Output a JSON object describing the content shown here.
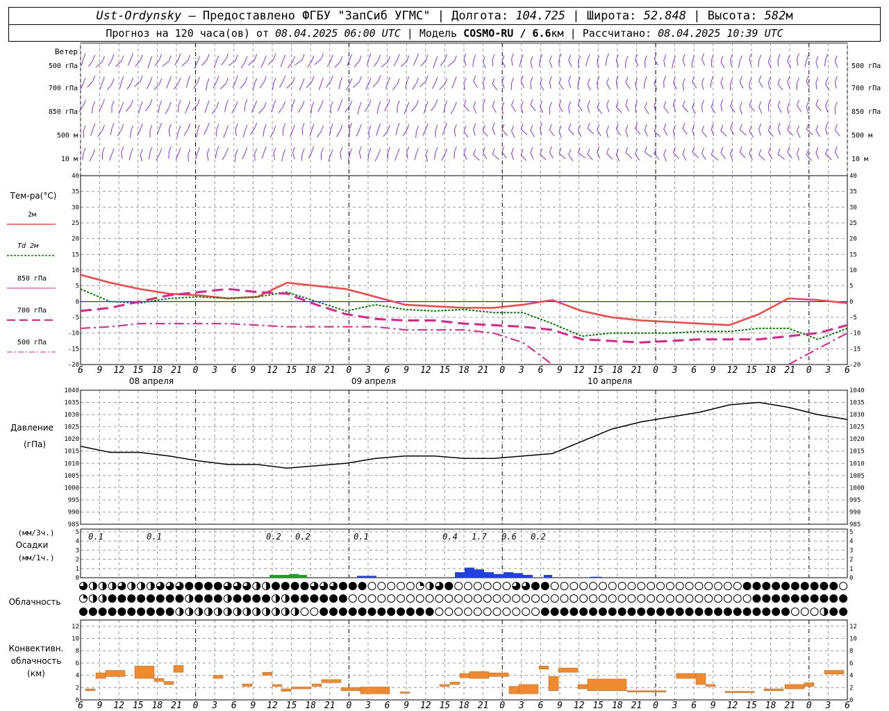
{
  "header": {
    "station": "Ust-Ordynsky",
    "provider": "— Предоставлено ФГБУ \"ЗапСиб УГМС\"",
    "lon_label": "Долгота:",
    "lon": "104.725",
    "lat_label": "Широта:",
    "lat": "52.848",
    "alt_label": "Высота:",
    "alt": "582",
    "alt_unit": "м",
    "forecast_label": "Прогноз на 120 часа(ов) от",
    "forecast_time": "08.04.2025 06:00 UTC",
    "model_label": "Модель",
    "model": "COSMO-RU / 6.6",
    "model_unit": "км",
    "calc_label": "Рассчитано:",
    "calc_time": "08.04.2025 10:39 UTC"
  },
  "labels": {
    "wind": "Ветер",
    "wind_levels": [
      "500 гПа",
      "700 гПа",
      "850 гПа",
      "500 м",
      "10  м"
    ],
    "temp_title": "Тем-ра(°С)",
    "temp_legend": [
      "2м",
      "Td 2м",
      "850 гПа",
      "700 гПа",
      "500 гПа"
    ],
    "pressure_title": "Давление",
    "pressure_unit": "(гПа)",
    "precip_unit3": "(мм/3ч.)",
    "precip_title": "Осадки",
    "precip_unit1": "(мм/1ч.)",
    "cloud_title": "Облачность",
    "conv_title": [
      "Конвективн.",
      "облачность",
      "(км)"
    ],
    "dates": [
      "08 апреля",
      "09 апреля",
      "10 апреля"
    ]
  },
  "colors": {
    "t2m": "#ff4040",
    "td2m": "#008000",
    "t850": "#e0208c",
    "t700": "#e0208c",
    "t500": "#e0208c",
    "zero_line": "#0000ff",
    "wind": "#8a2be2",
    "precip_green": "#20a020",
    "precip_blue": "#2040e0",
    "conv": "#f08a30"
  },
  "chart_data": [
    {
      "type": "line",
      "title": "Тем-ра(°С)",
      "x_hours": [
        6,
        9,
        12,
        15,
        18,
        21,
        0,
        3,
        6,
        9,
        12,
        15,
        18,
        21,
        0,
        3,
        6,
        9,
        12,
        15,
        18,
        21,
        0,
        3,
        6,
        9,
        12
      ],
      "ylim": [
        -20,
        40
      ],
      "yticks": [
        -20,
        -15,
        -10,
        -5,
        0,
        5,
        10,
        15,
        20,
        25,
        30,
        35,
        40
      ],
      "series": [
        {
          "name": "2м",
          "values": [
            8.5,
            6,
            4,
            2.5,
            2,
            1,
            1.5,
            6,
            5,
            4,
            1.5,
            -1,
            -1.5,
            -2,
            -2,
            -1,
            0.5,
            -3,
            -5,
            -6,
            -6.5,
            -7,
            -7.5,
            -4,
            1,
            0.5,
            -0.5
          ]
        },
        {
          "name": "Td 2м",
          "values": [
            4,
            0,
            -0.5,
            1,
            1.5,
            1,
            1.5,
            3,
            0,
            -3,
            -1,
            -2.5,
            -3,
            -2.5,
            -3.5,
            -3.5,
            -7,
            -11,
            -10,
            -10,
            -10,
            -9.5,
            -9.5,
            -8.5,
            -8.5,
            -12,
            -8.5
          ]
        },
        {
          "name": "850 гПа",
          "values": [
            -3,
            -2,
            0,
            2,
            3,
            4,
            3,
            2.5,
            -1,
            -4,
            -5.5,
            -6,
            -6,
            -7,
            -7.5,
            -8,
            -9,
            -12,
            -12.5,
            -13,
            -12.5,
            -12,
            -12,
            -12,
            -11,
            -10,
            -7.5
          ]
        },
        {
          "name": "700 гПа",
          "values": [
            -8.5,
            -8,
            -7,
            -7,
            -7,
            -7,
            -7.5,
            -8,
            -8,
            -8,
            -8,
            -9,
            -9,
            -9,
            -10,
            -13,
            -20,
            null,
            null,
            null,
            null,
            null,
            null,
            null,
            -20,
            -15,
            -10
          ]
        },
        {
          "name": "500 гПа",
          "values": [
            null,
            null,
            null,
            null,
            null,
            null,
            null,
            null,
            null,
            null,
            null,
            null,
            null,
            null,
            null,
            null,
            null,
            null,
            null,
            null,
            null,
            null,
            null,
            null,
            null,
            null,
            null
          ]
        }
      ]
    },
    {
      "type": "line",
      "title": "Давление",
      "ylabel": "(гПа)",
      "ylim": [
        985,
        1040
      ],
      "yticks": [
        985,
        990,
        995,
        1000,
        1005,
        1010,
        1015,
        1020,
        1025,
        1030,
        1035,
        1040
      ],
      "series": [
        {
          "values": [
            1017,
            1014.5,
            1014.5,
            1013,
            1011,
            1009.5,
            1009.5,
            1008,
            1009,
            1010,
            1012,
            1013,
            1013,
            1012,
            1012,
            1013,
            1014,
            1019,
            1024,
            1027,
            1029,
            1031,
            1034,
            1035,
            1033,
            1030,
            1028
          ]
        }
      ]
    },
    {
      "type": "bar",
      "title": "Осадки",
      "ylabel": "(мм/1ч.)",
      "ylim": [
        0,
        5
      ],
      "yticks": [
        0,
        1,
        2,
        3,
        4,
        5
      ],
      "labels_3h": [
        "0.1",
        "0.1",
        "0.2",
        "0.2",
        "0.1",
        "0.4",
        "1.7",
        "0.6",
        "0.2"
      ]
    },
    {
      "type": "bar",
      "title": "Конвективн. облачность (км)",
      "ylim": [
        0,
        13
      ],
      "yticks": [
        0,
        2,
        4,
        6,
        8,
        10,
        12
      ]
    }
  ]
}
